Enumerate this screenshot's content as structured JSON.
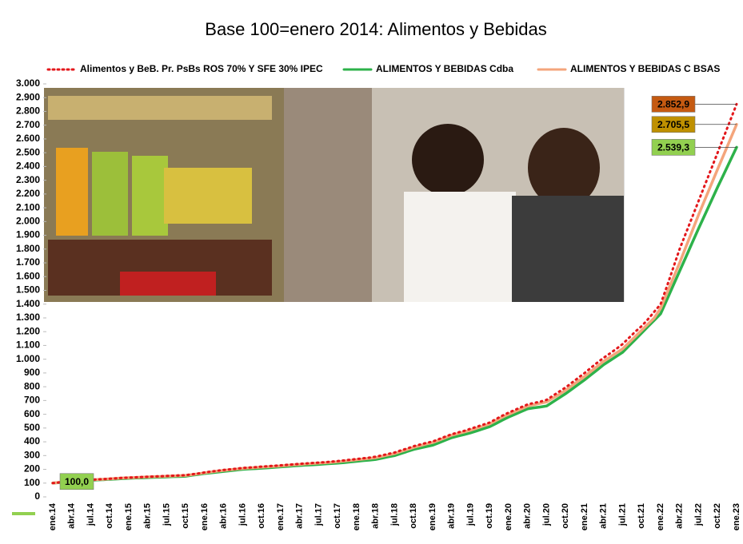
{
  "chart_data": {
    "type": "line",
    "title": "Base 100=enero 2014: Alimentos y Bebidas",
    "categories": [
      "ene.14",
      null,
      null,
      "abr.14",
      null,
      null,
      "jul.14",
      null,
      null,
      "oct.14",
      null,
      null,
      "ene.15",
      null,
      null,
      "abr.15",
      null,
      null,
      "jul.15",
      null,
      null,
      "oct.15",
      null,
      null,
      "ene.16",
      null,
      null,
      "abr.16",
      null,
      null,
      "jul.16",
      null,
      null,
      "oct.16",
      null,
      null,
      "ene.17",
      null,
      null,
      "abr.17",
      null,
      null,
      "jul.17",
      null,
      null,
      "oct.17",
      null,
      null,
      "ene.18",
      null,
      null,
      "abr.18",
      null,
      null,
      "jul.18",
      null,
      null,
      "oct.18",
      null,
      null,
      "ene.19",
      null,
      null,
      "abr.19",
      null,
      null,
      "jul.19",
      null,
      null,
      "oct.19",
      null,
      null,
      "ene.20",
      null,
      null,
      "abr.20",
      null,
      null,
      "jul.20",
      null,
      null,
      "oct.20",
      null,
      null,
      "ene.21",
      null,
      null,
      "abr.21",
      null,
      null,
      "jul.21",
      null,
      null,
      "oct.21",
      null,
      null,
      "ene.22",
      null,
      null,
      "abr.22",
      null,
      null,
      "jul.22",
      null,
      null,
      "oct.22",
      null,
      null,
      "ene.23"
    ],
    "series": [
      {
        "name": "Alimentos y BeB. Pr. PsBs ROS 70% Y SFE 30% IPEC",
        "color": "#e3171b",
        "dash": "dotted",
        "label_color": "#c55a11",
        "values": [
          100,
          105,
          110,
          115,
          118,
          121,
          124,
          127,
          129,
          132,
          135,
          138,
          140,
          142,
          144,
          146,
          148,
          150,
          152,
          154,
          156,
          158,
          164,
          170,
          178,
          184,
          190,
          196,
          200,
          205,
          210,
          213,
          216,
          220,
          223,
          226,
          229,
          233,
          236,
          240,
          243,
          246,
          249,
          252,
          256,
          260,
          265,
          270,
          275,
          280,
          285,
          292,
          302,
          312,
          322,
          338,
          352,
          368,
          380,
          392,
          402,
          420,
          438,
          455,
          468,
          480,
          495,
          510,
          525,
          540,
          565,
          590,
          612,
          632,
          652,
          672,
          682,
          692,
          705,
          735,
          765,
          795,
          830,
          865,
          900,
          938,
          975,
          1010,
          1042,
          1075,
          1110,
          1155,
          1200,
          1240,
          1290,
          1345,
          1400,
          1530,
          1665,
          1800,
          1917,
          2033,
          2150,
          2267,
          2383,
          2500,
          2618,
          2735,
          2852.9
        ],
        "value_labels": [
          null,
          null,
          null,
          null,
          null,
          null,
          null,
          null,
          null,
          null,
          null,
          null,
          null,
          null,
          null,
          null,
          null,
          null,
          null,
          null,
          null,
          null,
          null,
          null,
          null,
          null,
          null,
          null,
          null,
          null,
          null,
          null,
          null,
          null,
          null,
          null,
          null,
          null,
          null,
          null,
          null,
          null,
          null,
          null,
          null,
          null,
          null,
          null,
          null,
          null,
          null,
          null,
          null,
          null,
          null,
          null,
          null,
          null,
          null,
          null,
          null,
          null,
          null,
          null,
          null,
          null,
          null,
          null,
          null,
          null,
          null,
          null,
          null,
          null,
          null,
          null,
          null,
          null,
          null,
          null,
          null,
          null,
          null,
          null,
          null,
          null,
          null,
          null,
          null,
          null,
          null,
          null,
          null,
          null,
          null,
          null,
          null,
          null,
          null,
          null,
          null,
          null,
          null,
          null,
          null,
          null,
          null,
          null,
          "2.852,9"
        ]
      },
      {
        "name": "ALIMENTOS Y BEBIDAS Cdba",
        "color": "#2db24a",
        "dash": "solid",
        "label_color": "#92d050",
        "values": [
          100,
          104,
          108,
          112,
          115,
          117,
          120,
          123,
          125,
          128,
          130,
          133,
          135,
          137,
          138,
          140,
          142,
          143,
          145,
          147,
          148,
          150,
          157,
          163,
          170,
          175,
          180,
          185,
          190,
          195,
          200,
          203,
          205,
          208,
          211,
          215,
          218,
          221,
          225,
          228,
          231,
          233,
          236,
          239,
          242,
          245,
          249,
          254,
          258,
          263,
          267,
          272,
          281,
          291,
          300,
          315,
          330,
          345,
          355,
          365,
          375,
          393,
          412,
          430,
          442,
          453,
          465,
          480,
          495,
          510,
          533,
          557,
          580,
          600,
          620,
          640,
          647,
          653,
          660,
          690,
          720,
          750,
          783,
          817,
          850,
          887,
          923,
          960,
          990,
          1020,
          1050,
          1097,
          1143,
          1190,
          1237,
          1283,
          1330,
          1433,
          1537,
          1640,
          1743,
          1847,
          1950,
          2050,
          2150,
          2250,
          2346,
          2443,
          2539.3
        ],
        "value_labels": [
          "100,0",
          null,
          null,
          null,
          null,
          null,
          null,
          null,
          null,
          null,
          null,
          null,
          null,
          null,
          null,
          null,
          null,
          null,
          null,
          null,
          null,
          null,
          null,
          null,
          null,
          null,
          null,
          null,
          null,
          null,
          null,
          null,
          null,
          null,
          null,
          null,
          null,
          null,
          null,
          null,
          null,
          null,
          null,
          null,
          null,
          null,
          null,
          null,
          null,
          null,
          null,
          null,
          null,
          null,
          null,
          null,
          null,
          null,
          null,
          null,
          null,
          null,
          null,
          null,
          null,
          null,
          null,
          null,
          null,
          null,
          null,
          null,
          null,
          null,
          null,
          null,
          null,
          null,
          null,
          null,
          null,
          null,
          null,
          null,
          null,
          null,
          null,
          null,
          null,
          null,
          null,
          null,
          null,
          null,
          null,
          null,
          null,
          null,
          null,
          null,
          null,
          null,
          null,
          null,
          null,
          null,
          null,
          null,
          "2.539,3"
        ]
      },
      {
        "name": "ALIMENTOS Y BEBIDAS C BSAS",
        "color": "#f4a57c",
        "dash": "solid",
        "label_color": "#bf9000",
        "values": [
          100,
          105,
          110,
          115,
          118,
          120,
          123,
          126,
          128,
          131,
          134,
          137,
          139,
          141,
          143,
          145,
          147,
          148,
          150,
          152,
          154,
          156,
          162,
          168,
          175,
          181,
          187,
          192,
          197,
          202,
          207,
          210,
          213,
          216,
          219,
          222,
          225,
          229,
          233,
          236,
          239,
          242,
          245,
          248,
          251,
          255,
          260,
          265,
          270,
          275,
          280,
          285,
          295,
          305,
          315,
          330,
          345,
          360,
          372,
          385,
          395,
          412,
          430,
          448,
          460,
          472,
          485,
          500,
          515,
          530,
          555,
          580,
          600,
          620,
          640,
          660,
          670,
          680,
          690,
          718,
          745,
          775,
          808,
          842,
          875,
          912,
          948,
          985,
          1015,
          1045,
          1075,
          1120,
          1165,
          1210,
          1255,
          1300,
          1370,
          1480,
          1590,
          1700,
          1817,
          1933,
          2050,
          2160,
          2270,
          2380,
          2488,
          2597,
          2705.5
        ],
        "value_labels": [
          null,
          null,
          null,
          null,
          null,
          null,
          null,
          null,
          null,
          null,
          null,
          null,
          null,
          null,
          null,
          null,
          null,
          null,
          null,
          null,
          null,
          null,
          null,
          null,
          null,
          null,
          null,
          null,
          null,
          null,
          null,
          null,
          null,
          null,
          null,
          null,
          null,
          null,
          null,
          null,
          null,
          null,
          null,
          null,
          null,
          null,
          null,
          null,
          null,
          null,
          null,
          null,
          null,
          null,
          null,
          null,
          null,
          null,
          null,
          null,
          null,
          null,
          null,
          null,
          null,
          null,
          null,
          null,
          null,
          null,
          null,
          null,
          null,
          null,
          null,
          null,
          null,
          null,
          null,
          null,
          null,
          null,
          null,
          null,
          null,
          null,
          null,
          null,
          null,
          null,
          null,
          null,
          null,
          null,
          null,
          null,
          null,
          null,
          null,
          null,
          null,
          null,
          null,
          null,
          null,
          null,
          null,
          null,
          "2.705,5"
        ]
      }
    ],
    "ylim": [
      0,
      3000
    ],
    "yticks": [
      0,
      100,
      200,
      300,
      400,
      500,
      600,
      700,
      800,
      900,
      {
        "value": 1000,
        "label": "1.000"
      },
      {
        "value": 1100,
        "label": "1.100"
      },
      {
        "value": 1200,
        "label": "1.200"
      },
      {
        "value": 1300,
        "label": "1.300"
      },
      {
        "value": 1400,
        "label": "1.400"
      },
      {
        "value": 1500,
        "label": "1.500"
      },
      {
        "value": 1600,
        "label": "1.600"
      },
      {
        "value": 1700,
        "label": "1.700"
      },
      {
        "value": 1800,
        "label": "1.800"
      },
      {
        "value": 1900,
        "label": "1.900"
      },
      {
        "value": 2000,
        "label": "2.000"
      },
      {
        "value": 2100,
        "label": "2.100"
      },
      {
        "value": 2200,
        "label": "2.200"
      },
      {
        "value": 2300,
        "label": "2.300"
      },
      {
        "value": 2400,
        "label": "2.400"
      },
      {
        "value": 2500,
        "label": "2.500"
      },
      {
        "value": 2600,
        "label": "2.600"
      },
      {
        "value": 2700,
        "label": "2.700"
      },
      {
        "value": 2800,
        "label": "2.800"
      },
      {
        "value": 2900,
        "label": "2.900"
      },
      {
        "value": 3000,
        "label": "3.000"
      }
    ],
    "grid": false,
    "legend": "top"
  }
}
